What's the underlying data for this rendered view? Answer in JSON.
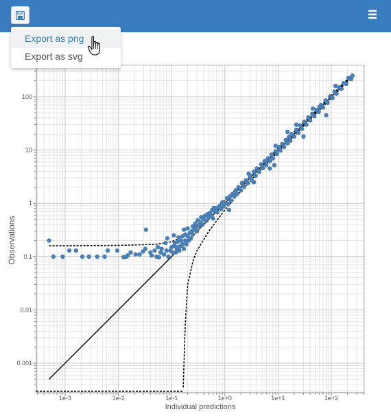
{
  "toolbar": {
    "save_icon": "floppy-disk-icon",
    "menu_icon": "hamburger-menu-icon",
    "export_png": "Export as png",
    "export_svg": "Export as svg"
  },
  "colors": {
    "header": "#3a7cc0",
    "points": "#4a7fb5",
    "menu_active_text": "#3a7cc0"
  },
  "chart_data": {
    "type": "scatter",
    "xlabel": "Individual predictions",
    "ylabel": "Observations",
    "xscale": "log",
    "yscale": "log",
    "xlim": [
      0.0003,
      400
    ],
    "ylim": [
      0.0003,
      400
    ],
    "x_ticks": [
      "1e-3",
      "1e-2",
      "1e-1",
      "1e+0",
      "1e+1",
      "1e+2"
    ],
    "y_ticks": [
      "0.001",
      "0.01",
      "0.1",
      "1",
      "10",
      "100"
    ],
    "grid": true,
    "identity_line": [
      [
        0.0005,
        0.0005
      ],
      [
        250,
        250
      ]
    ],
    "upper_band": [
      [
        0.0005,
        0.16
      ],
      [
        0.001,
        0.16
      ],
      [
        0.01,
        0.162
      ],
      [
        0.05,
        0.17
      ],
      [
        0.1,
        0.19
      ],
      [
        0.2,
        0.26
      ],
      [
        0.5,
        0.62
      ],
      [
        1,
        1.15
      ],
      [
        2,
        2.2
      ],
      [
        5,
        5.4
      ],
      [
        10,
        10.8
      ],
      [
        20,
        22
      ],
      [
        50,
        53
      ],
      [
        100,
        107
      ],
      [
        250,
        262
      ]
    ],
    "lower_band": [
      [
        0.165,
        0.00035
      ],
      [
        0.18,
        0.005
      ],
      [
        0.2,
        0.03
      ],
      [
        0.25,
        0.08
      ],
      [
        0.3,
        0.13
      ],
      [
        0.5,
        0.3
      ],
      [
        1,
        0.75
      ],
      [
        2,
        1.7
      ],
      [
        5,
        4.6
      ],
      [
        10,
        9.3
      ],
      [
        20,
        18.6
      ],
      [
        50,
        47
      ],
      [
        100,
        94
      ],
      [
        250,
        238
      ]
    ],
    "points": [
      [
        0.0005,
        0.2
      ],
      [
        0.0006,
        0.1
      ],
      [
        0.0009,
        0.1
      ],
      [
        0.0012,
        0.13
      ],
      [
        0.0016,
        0.13
      ],
      [
        0.0021,
        0.1
      ],
      [
        0.0028,
        0.1
      ],
      [
        0.004,
        0.1
      ],
      [
        0.0055,
        0.1
      ],
      [
        0.0063,
        0.13
      ],
      [
        0.0095,
        0.13
      ],
      [
        0.0125,
        0.098
      ],
      [
        0.014,
        0.1
      ],
      [
        0.015,
        0.105
      ],
      [
        0.017,
        0.12
      ],
      [
        0.021,
        0.11
      ],
      [
        0.025,
        0.11
      ],
      [
        0.029,
        0.125
      ],
      [
        0.032,
        0.14
      ],
      [
        0.033,
        0.32
      ],
      [
        0.04,
        0.12
      ],
      [
        0.042,
        0.105
      ],
      [
        0.048,
        0.13
      ],
      [
        0.052,
        0.1
      ],
      [
        0.055,
        0.15
      ],
      [
        0.058,
        0.097
      ],
      [
        0.062,
        0.12
      ],
      [
        0.065,
        0.14
      ],
      [
        0.072,
        0.11
      ],
      [
        0.077,
        0.18
      ],
      [
        0.08,
        0.13
      ],
      [
        0.083,
        0.22
      ],
      [
        0.087,
        0.1
      ],
      [
        0.095,
        0.13
      ],
      [
        0.1,
        0.15
      ],
      [
        0.104,
        0.12
      ],
      [
        0.11,
        0.25
      ],
      [
        0.112,
        0.16
      ],
      [
        0.115,
        0.18
      ],
      [
        0.12,
        0.12
      ],
      [
        0.125,
        0.14
      ],
      [
        0.13,
        0.15
      ],
      [
        0.13,
        0.19
      ],
      [
        0.135,
        0.23
      ],
      [
        0.14,
        0.13
      ],
      [
        0.15,
        0.2
      ],
      [
        0.15,
        0.16
      ],
      [
        0.16,
        0.17
      ],
      [
        0.16,
        0.24
      ],
      [
        0.17,
        0.32
      ],
      [
        0.17,
        0.14
      ],
      [
        0.18,
        0.2
      ],
      [
        0.18,
        0.26
      ],
      [
        0.19,
        0.17
      ],
      [
        0.2,
        0.24
      ],
      [
        0.2,
        0.34
      ],
      [
        0.21,
        0.2
      ],
      [
        0.22,
        0.28
      ],
      [
        0.23,
        0.22
      ],
      [
        0.24,
        0.3
      ],
      [
        0.25,
        0.37
      ],
      [
        0.25,
        0.26
      ],
      [
        0.27,
        0.32
      ],
      [
        0.28,
        0.42
      ],
      [
        0.29,
        0.36
      ],
      [
        0.3,
        0.3
      ],
      [
        0.31,
        0.48
      ],
      [
        0.33,
        0.38
      ],
      [
        0.35,
        0.44
      ],
      [
        0.36,
        0.55
      ],
      [
        0.38,
        0.4
      ],
      [
        0.4,
        0.5
      ],
      [
        0.42,
        0.58
      ],
      [
        0.45,
        0.47
      ],
      [
        0.47,
        0.62
      ],
      [
        0.5,
        0.55
      ],
      [
        0.52,
        0.66
      ],
      [
        0.55,
        0.6
      ],
      [
        0.58,
        0.75
      ],
      [
        0.6,
        0.52
      ],
      [
        0.65,
        0.7
      ],
      [
        0.7,
        0.82
      ],
      [
        0.72,
        0.68
      ],
      [
        0.8,
        0.9
      ],
      [
        0.85,
        0.78
      ],
      [
        0.9,
        1.05
      ],
      [
        0.95,
        0.88
      ],
      [
        1.0,
        1.0
      ],
      [
        1.1,
        1.25
      ],
      [
        1.15,
        0.97
      ],
      [
        1.25,
        1.35
      ],
      [
        1.3,
        1.12
      ],
      [
        1.4,
        1.5
      ],
      [
        1.5,
        1.35
      ],
      [
        1.6,
        1.75
      ],
      [
        1.7,
        1.5
      ],
      [
        1.8,
        2.0
      ],
      [
        2.0,
        1.75
      ],
      [
        2.1,
        2.4
      ],
      [
        2.3,
        2.05
      ],
      [
        2.5,
        2.7
      ],
      [
        2.7,
        2.4
      ],
      [
        3.0,
        3.2
      ],
      [
        3.2,
        2.7
      ],
      [
        3.5,
        3.9
      ],
      [
        3.8,
        3.3
      ],
      [
        4.0,
        4.5
      ],
      [
        4.4,
        3.9
      ],
      [
        4.8,
        5.4
      ],
      [
        5.2,
        4.6
      ],
      [
        5.6,
        6.2
      ],
      [
        6.0,
        5.2
      ],
      [
        6.5,
        7.0
      ],
      [
        7.0,
        6.2
      ],
      [
        7.5,
        8.2
      ],
      [
        8.0,
        7.0
      ],
      [
        8.5,
        5.2
      ],
      [
        9.0,
        9.5
      ],
      [
        9.5,
        8.5
      ],
      [
        10.5,
        11.5
      ],
      [
        11,
        9.8
      ],
      [
        12,
        13
      ],
      [
        13,
        11.5
      ],
      [
        14,
        15.5
      ],
      [
        15,
        13.5
      ],
      [
        16,
        17.5
      ],
      [
        17,
        15
      ],
      [
        18,
        20
      ],
      [
        20,
        18
      ],
      [
        22,
        24
      ],
      [
        24,
        21
      ],
      [
        26,
        29
      ],
      [
        28,
        25
      ],
      [
        31,
        34
      ],
      [
        34,
        30
      ],
      [
        37,
        41
      ],
      [
        40,
        36
      ],
      [
        44,
        48
      ],
      [
        48,
        43
      ],
      [
        53,
        57
      ],
      [
        58,
        52
      ],
      [
        64,
        70
      ],
      [
        70,
        63
      ],
      [
        78,
        85
      ],
      [
        85,
        77
      ],
      [
        95,
        102
      ],
      [
        105,
        95
      ],
      [
        115,
        125
      ],
      [
        125,
        114
      ],
      [
        140,
        150
      ],
      [
        155,
        142
      ],
      [
        170,
        180
      ],
      [
        190,
        175
      ],
      [
        210,
        225
      ],
      [
        235,
        215
      ],
      [
        250,
        250
      ],
      [
        240,
        230
      ],
      [
        60,
        65
      ],
      [
        80,
        45
      ],
      [
        30,
        18
      ],
      [
        15,
        22
      ],
      [
        7,
        4.5
      ],
      [
        3.5,
        2.5
      ],
      [
        1.2,
        0.75
      ],
      [
        0.62,
        0.82
      ],
      [
        22,
        30
      ],
      [
        45,
        60
      ],
      [
        120,
        160
      ],
      [
        9,
        12
      ],
      [
        2.8,
        3.6
      ]
    ]
  }
}
